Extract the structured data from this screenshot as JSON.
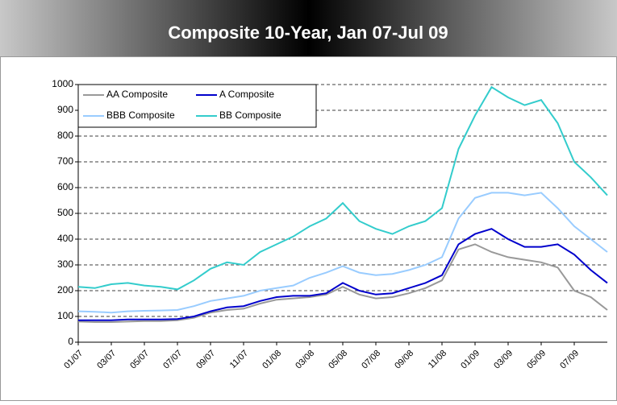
{
  "chart_data": {
    "type": "line",
    "title": "Composite 10-Year, Jan 07-Jul 09",
    "categories": [
      "01/07",
      null,
      "03/07",
      null,
      "05/07",
      null,
      "07/07",
      null,
      "09/07",
      null,
      "11/07",
      null,
      "01/08",
      null,
      "03/08",
      null,
      "05/08",
      null,
      "07/08",
      null,
      "09/08",
      null,
      "11/08",
      null,
      "01/09",
      null,
      "03/09",
      null,
      "05/09",
      null,
      "07/09",
      null,
      null
    ],
    "series": [
      {
        "name": "AA Composite",
        "color": "#999999",
        "values": [
          80,
          78,
          78,
          80,
          82,
          82,
          85,
          95,
          115,
          125,
          130,
          150,
          165,
          170,
          175,
          185,
          215,
          185,
          170,
          175,
          190,
          210,
          240,
          360,
          380,
          350,
          330,
          320,
          310,
          290,
          200,
          175,
          125
        ]
      },
      {
        "name": "A Composite",
        "color": "#0000cc",
        "values": [
          85,
          85,
          85,
          88,
          88,
          88,
          90,
          100,
          120,
          135,
          140,
          160,
          175,
          180,
          180,
          190,
          230,
          200,
          185,
          190,
          210,
          230,
          260,
          380,
          420,
          440,
          400,
          370,
          370,
          380,
          340,
          280,
          230
        ]
      },
      {
        "name": "BBB Composite",
        "color": "#99ccff",
        "values": [
          120,
          118,
          115,
          120,
          122,
          123,
          125,
          140,
          160,
          170,
          180,
          200,
          210,
          220,
          250,
          270,
          295,
          270,
          260,
          265,
          280,
          300,
          330,
          480,
          560,
          580,
          580,
          570,
          580,
          520,
          450,
          400,
          350
        ]
      },
      {
        "name": "BB Composite",
        "color": "#33cccc",
        "values": [
          215,
          210,
          225,
          230,
          220,
          215,
          205,
          240,
          285,
          310,
          300,
          350,
          380,
          410,
          450,
          480,
          540,
          470,
          440,
          420,
          450,
          470,
          520,
          750,
          880,
          990,
          950,
          920,
          940,
          850,
          700,
          640,
          570
        ]
      }
    ],
    "ylim": [
      0,
      1000
    ],
    "yticks": [
      0,
      100,
      200,
      300,
      400,
      500,
      600,
      700,
      800,
      900,
      1000
    ],
    "grid": true,
    "legend": "top-left"
  }
}
